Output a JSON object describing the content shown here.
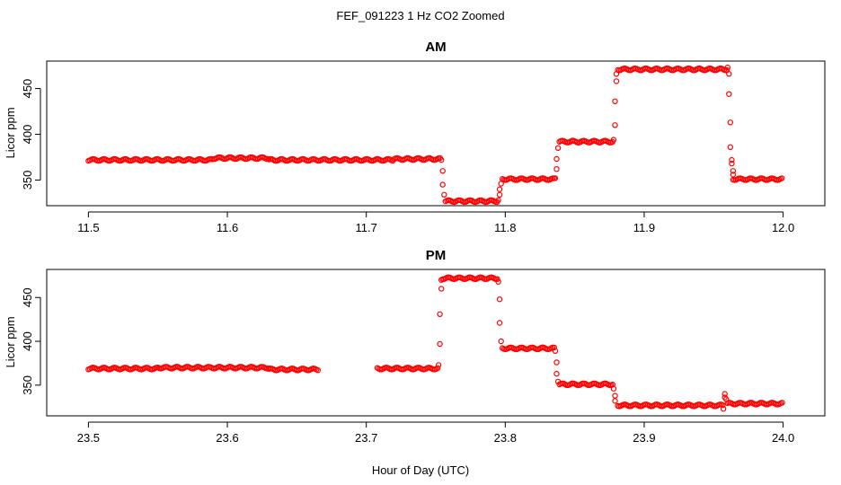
{
  "figure": {
    "title": "FEF_091223  1 Hz CO2 Zoomed",
    "xlabel": "Hour of Day (UTC)",
    "series_color": "#ff0000"
  },
  "chart_data": [
    {
      "type": "scatter",
      "title": "AM",
      "xlabel": "",
      "ylabel": "Licor ppm",
      "xlim": [
        11.47,
        12.03
      ],
      "ylim": [
        322,
        480
      ],
      "xticks": [
        "11.5",
        "11.6",
        "11.7",
        "11.8",
        "11.9",
        "12.0"
      ],
      "yticks": [
        "350",
        "400",
        "450"
      ],
      "segments": [
        {
          "x0": 11.5,
          "x1": 11.59,
          "y": 372
        },
        {
          "x0": 11.59,
          "x1": 11.63,
          "y": 374
        },
        {
          "x0": 11.63,
          "x1": 11.72,
          "y": 372
        },
        {
          "x0": 11.72,
          "x1": 11.754,
          "y": 373
        },
        {
          "x0": 11.757,
          "x1": 11.795,
          "y": 327
        },
        {
          "x0": 11.798,
          "x1": 11.836,
          "y": 351
        },
        {
          "x0": 11.839,
          "x1": 11.878,
          "y": 392
        },
        {
          "x0": 11.881,
          "x1": 11.96,
          "y": 471
        },
        {
          "x0": 11.964,
          "x1": 12.0,
          "y": 351
        }
      ],
      "points": [
        {
          "x": 11.754,
          "y": 372
        },
        {
          "x": 11.755,
          "y": 360
        },
        {
          "x": 11.755,
          "y": 345
        },
        {
          "x": 11.756,
          "y": 334
        },
        {
          "x": 11.795,
          "y": 328
        },
        {
          "x": 11.796,
          "y": 334
        },
        {
          "x": 11.796,
          "y": 340
        },
        {
          "x": 11.797,
          "y": 346
        },
        {
          "x": 11.836,
          "y": 352
        },
        {
          "x": 11.837,
          "y": 362
        },
        {
          "x": 11.837,
          "y": 373
        },
        {
          "x": 11.838,
          "y": 385
        },
        {
          "x": 11.878,
          "y": 394
        },
        {
          "x": 11.879,
          "y": 410
        },
        {
          "x": 11.879,
          "y": 436
        },
        {
          "x": 11.88,
          "y": 458
        },
        {
          "x": 11.88,
          "y": 466
        },
        {
          "x": 11.96,
          "y": 473
        },
        {
          "x": 11.961,
          "y": 466
        },
        {
          "x": 11.961,
          "y": 444
        },
        {
          "x": 11.962,
          "y": 413
        },
        {
          "x": 11.962,
          "y": 386
        },
        {
          "x": 11.963,
          "y": 372
        },
        {
          "x": 11.963,
          "y": 368
        },
        {
          "x": 11.964,
          "y": 360
        },
        {
          "x": 11.964,
          "y": 356
        }
      ]
    },
    {
      "type": "scatter",
      "title": "PM",
      "xlabel": "",
      "ylabel": "Licor ppm",
      "xlim": [
        23.47,
        24.03
      ],
      "ylim": [
        315,
        482
      ],
      "xticks": [
        "23.5",
        "23.6",
        "23.7",
        "23.8",
        "23.9",
        "24.0"
      ],
      "yticks": [
        "350",
        "400",
        "450"
      ],
      "segments": [
        {
          "x0": 23.5,
          "x1": 23.55,
          "y": 369
        },
        {
          "x0": 23.55,
          "x1": 23.63,
          "y": 370
        },
        {
          "x0": 23.63,
          "x1": 23.666,
          "y": 368
        },
        {
          "x0": 23.708,
          "x1": 23.752,
          "y": 369
        },
        {
          "x0": 23.755,
          "x1": 23.795,
          "y": 472
        },
        {
          "x0": 23.798,
          "x1": 23.836,
          "y": 392
        },
        {
          "x0": 23.839,
          "x1": 23.878,
          "y": 351
        },
        {
          "x0": 23.881,
          "x1": 23.957,
          "y": 327
        },
        {
          "x0": 23.96,
          "x1": 24.0,
          "y": 329
        }
      ],
      "points": [
        {
          "x": 23.752,
          "y": 373
        },
        {
          "x": 23.753,
          "y": 397
        },
        {
          "x": 23.753,
          "y": 431
        },
        {
          "x": 23.754,
          "y": 460
        },
        {
          "x": 23.754,
          "y": 470
        },
        {
          "x": 23.795,
          "y": 468
        },
        {
          "x": 23.796,
          "y": 448
        },
        {
          "x": 23.796,
          "y": 421
        },
        {
          "x": 23.797,
          "y": 400
        },
        {
          "x": 23.836,
          "y": 389
        },
        {
          "x": 23.837,
          "y": 376
        },
        {
          "x": 23.837,
          "y": 363
        },
        {
          "x": 23.838,
          "y": 354
        },
        {
          "x": 23.878,
          "y": 346
        },
        {
          "x": 23.879,
          "y": 338
        },
        {
          "x": 23.879,
          "y": 332
        },
        {
          "x": 23.957,
          "y": 323
        },
        {
          "x": 23.958,
          "y": 336
        },
        {
          "x": 23.958,
          "y": 340
        },
        {
          "x": 23.959,
          "y": 334
        }
      ]
    }
  ]
}
